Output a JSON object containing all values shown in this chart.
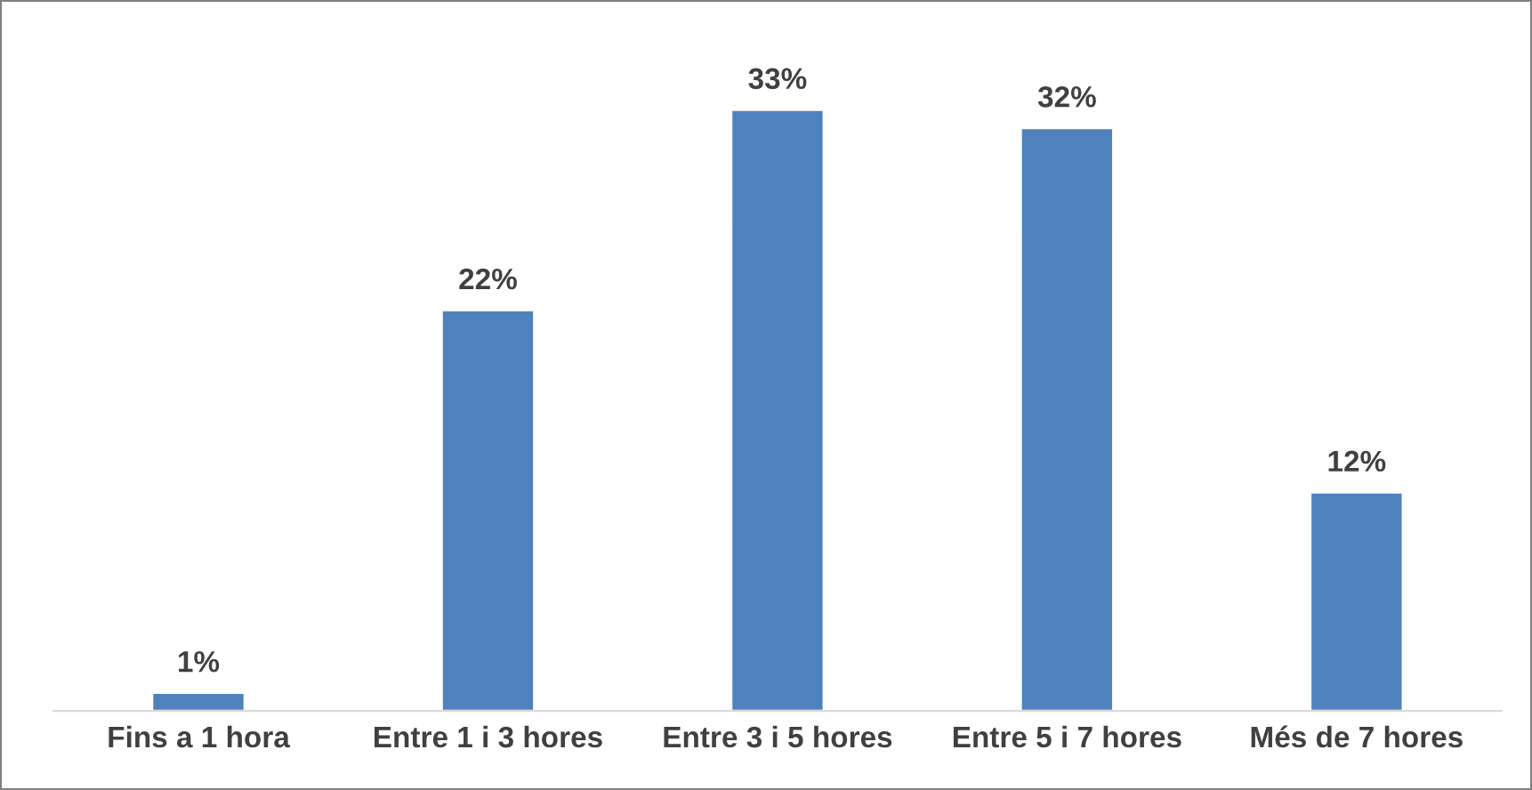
{
  "chart_data": {
    "type": "bar",
    "categories": [
      "Fins a 1 hora",
      "Entre 1 i 3 hores",
      "Entre 3 i 5 hores",
      "Entre 5 i 7 hores",
      "Més de 7 hores"
    ],
    "values": [
      1,
      22,
      33,
      32,
      12
    ],
    "value_labels": [
      "1%",
      "22%",
      "33%",
      "32%",
      "12%"
    ],
    "color": "#4f81bd",
    "grid": false,
    "legend": false
  }
}
